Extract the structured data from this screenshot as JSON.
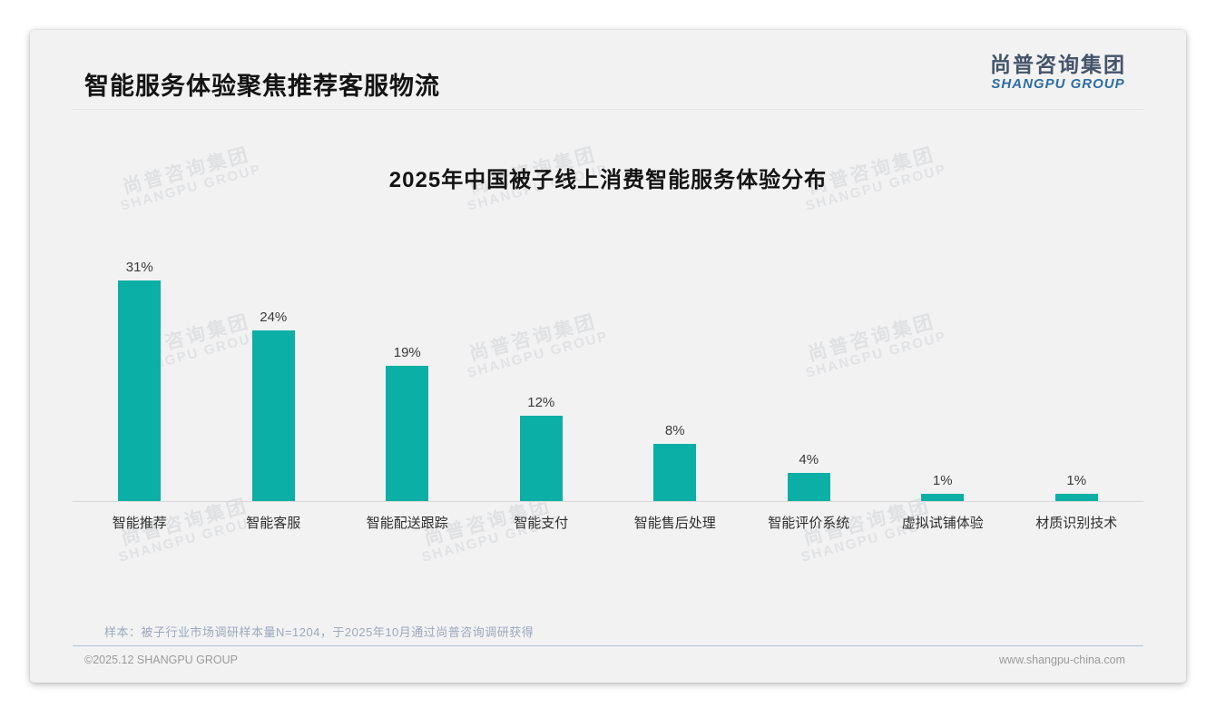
{
  "page": {
    "title": "智能服务体验聚焦推荐客服物流",
    "note": "样本：被子行业市场调研样本量N=1204，于2025年10月通过尚普咨询调研获得",
    "footer_left": "©2025.12 SHANGPU GROUP",
    "footer_right": "www.shangpu-china.com"
  },
  "logo": {
    "cn": "尚普咨询集团",
    "en": "SHANGPU GROUP"
  },
  "watermark": {
    "cn": "尚普咨询集团",
    "en": "SHANGPU GROUP"
  },
  "colors": {
    "bar": "#0cafa6",
    "card_background": "#f2f2f3",
    "logo_cn": "#44546a",
    "logo_en": "#2e6da4",
    "note_text": "#9ca8bc",
    "footer_text": "#9b9b9b"
  },
  "chart_data": {
    "type": "bar",
    "title": "2025年中国被子线上消费智能服务体验分布",
    "categories": [
      "智能推荐",
      "智能客服",
      "智能配送跟踪",
      "智能支付",
      "智能售后处理",
      "智能评价系统",
      "虚拟试铺体验",
      "材质识别技术"
    ],
    "values": [
      31,
      24,
      19,
      12,
      8,
      4,
      1,
      1
    ],
    "unit": "%",
    "value_labels": [
      "31%",
      "24%",
      "19%",
      "12%",
      "8%",
      "4%",
      "1%",
      "1%"
    ],
    "xlabel": "",
    "ylabel": "",
    "ylim": [
      0,
      35
    ],
    "grid": false,
    "legend": false,
    "bar_color": "#0cafa6"
  }
}
